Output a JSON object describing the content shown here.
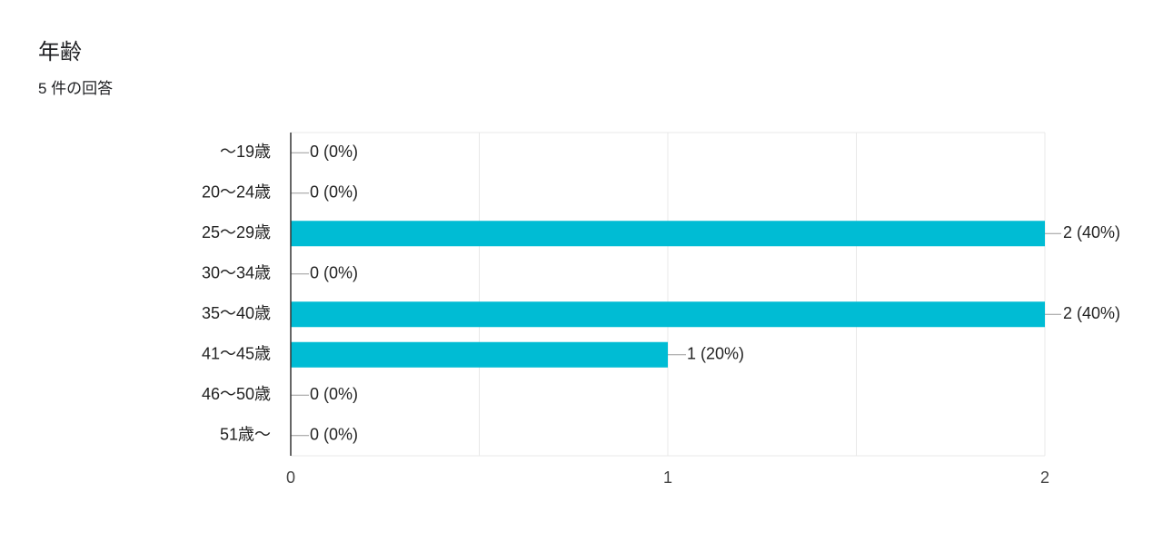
{
  "header": {
    "title": "年齢",
    "subtitle": "5 件の回答"
  },
  "colors": {
    "bar": "#00bcd4",
    "grid": "#e8e8e8",
    "axis": "#333333",
    "text": "#222222"
  },
  "chart_data": {
    "type": "bar",
    "orientation": "horizontal",
    "title": "年齢",
    "subtitle": "5 件の回答",
    "categories": [
      "〜19歳",
      "20〜24歳",
      "25〜29歳",
      "30〜34歳",
      "35〜40歳",
      "41〜45歳",
      "46〜50歳",
      "51歳〜"
    ],
    "values": [
      0,
      0,
      2,
      0,
      2,
      1,
      0,
      0
    ],
    "value_labels": [
      "0 (0%)",
      "0 (0%)",
      "2 (40%)",
      "0 (0%)",
      "2 (40%)",
      "1 (20%)",
      "0 (0%)",
      "0 (0%)"
    ],
    "xlim": [
      0,
      2
    ],
    "x_ticks": [
      "0",
      "1",
      "2"
    ],
    "grid": true,
    "legend": "none"
  }
}
